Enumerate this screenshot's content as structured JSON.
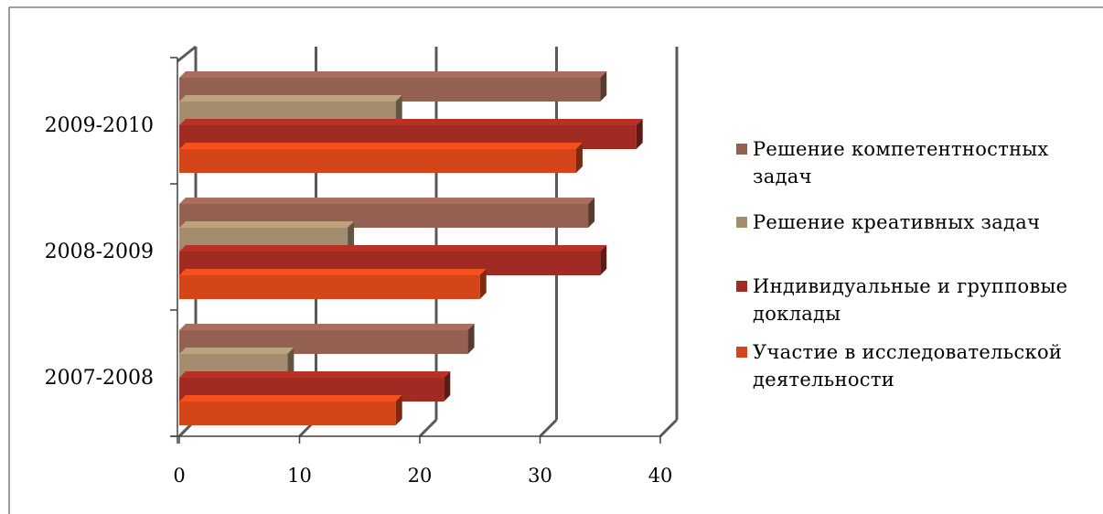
{
  "chart_data": {
    "type": "bar",
    "orientation": "horizontal",
    "style": "3d-clustered",
    "categories": [
      "2007-2008",
      "2008-2009",
      "2009-2010"
    ],
    "series": [
      {
        "name": "Участие в исследовательской деятельности",
        "color": "#D4461A",
        "values": [
          18,
          25,
          33
        ]
      },
      {
        "name": "Индивидуальные и групповые доклады",
        "color": "#A02B22",
        "values": [
          22,
          35,
          38
        ]
      },
      {
        "name": "Решение креативных задач",
        "color": "#A48D6E",
        "values": [
          9,
          14,
          18
        ]
      },
      {
        "name": "Решение компетентностных задач",
        "color": "#946052",
        "values": [
          24,
          34,
          35
        ]
      }
    ],
    "xlim": [
      0,
      40
    ],
    "xticks": [
      "0",
      "10",
      "20",
      "30",
      "40"
    ],
    "grid": true,
    "legend_position": "right",
    "legend_order": [
      3,
      2,
      1,
      0
    ]
  },
  "legend": {
    "items": [
      {
        "label": "Решение компетентностных задач",
        "color": "#946052"
      },
      {
        "label": "Решение креативных задач",
        "color": "#A48D6E"
      },
      {
        "label": "Индивидуальные и групповые доклады",
        "color": "#A02B22"
      },
      {
        "label": "Участие в исследовательской деятельности",
        "color": "#D4461A"
      }
    ]
  }
}
